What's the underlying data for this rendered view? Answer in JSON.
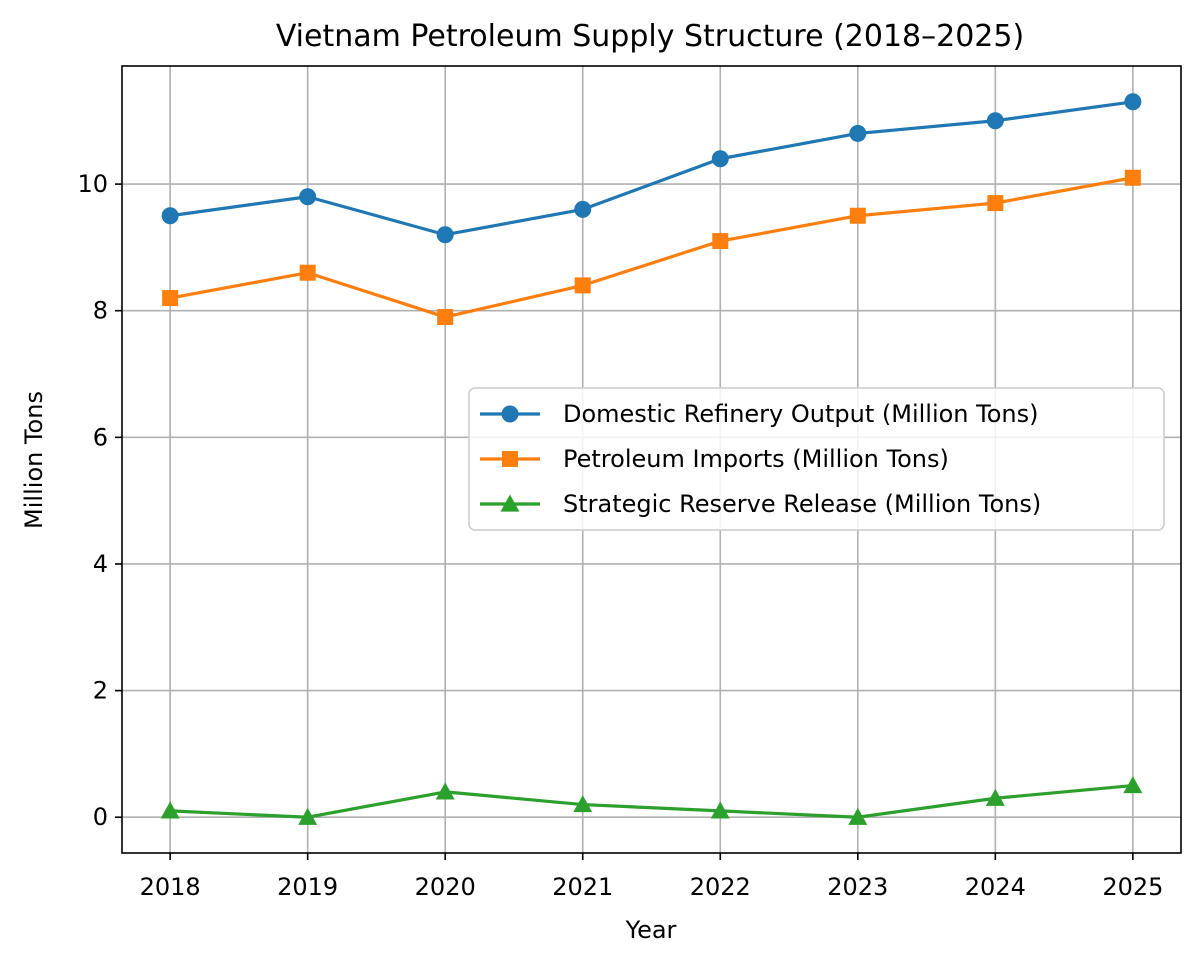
{
  "chart_data": {
    "type": "line",
    "title": "Vietnam Petroleum Supply Structure (2018–2025)",
    "xlabel": "Year",
    "ylabel": "Million Tons",
    "x": [
      2018,
      2019,
      2020,
      2021,
      2022,
      2023,
      2024,
      2025
    ],
    "x_tick_labels": [
      "2018",
      "2019",
      "2020",
      "2021",
      "2022",
      "2023",
      "2024",
      "2025"
    ],
    "xlim": [
      2017.65,
      2025.35
    ],
    "ylim": [
      -0.565,
      11.865
    ],
    "y_ticks": [
      0,
      2,
      4,
      6,
      8,
      10
    ],
    "y_tick_labels": [
      "0",
      "2",
      "4",
      "6",
      "8",
      "10"
    ],
    "grid": true,
    "legend_position": "center-right",
    "series": [
      {
        "name": "Domestic Refinery Output (Million Tons)",
        "color": "#1f77b4",
        "marker": "circle",
        "values": [
          9.5,
          9.8,
          9.2,
          9.6,
          10.4,
          10.8,
          11.0,
          11.3
        ]
      },
      {
        "name": "Petroleum Imports (Million Tons)",
        "color": "#ff7f0e",
        "marker": "square",
        "values": [
          8.2,
          8.6,
          7.9,
          8.4,
          9.1,
          9.5,
          9.7,
          10.1
        ]
      },
      {
        "name": "Strategic Reserve Release (Million Tons)",
        "color": "#2ca02c",
        "marker": "triangle",
        "values": [
          0.1,
          0.0,
          0.4,
          0.2,
          0.1,
          0.0,
          0.3,
          0.5
        ]
      }
    ]
  }
}
